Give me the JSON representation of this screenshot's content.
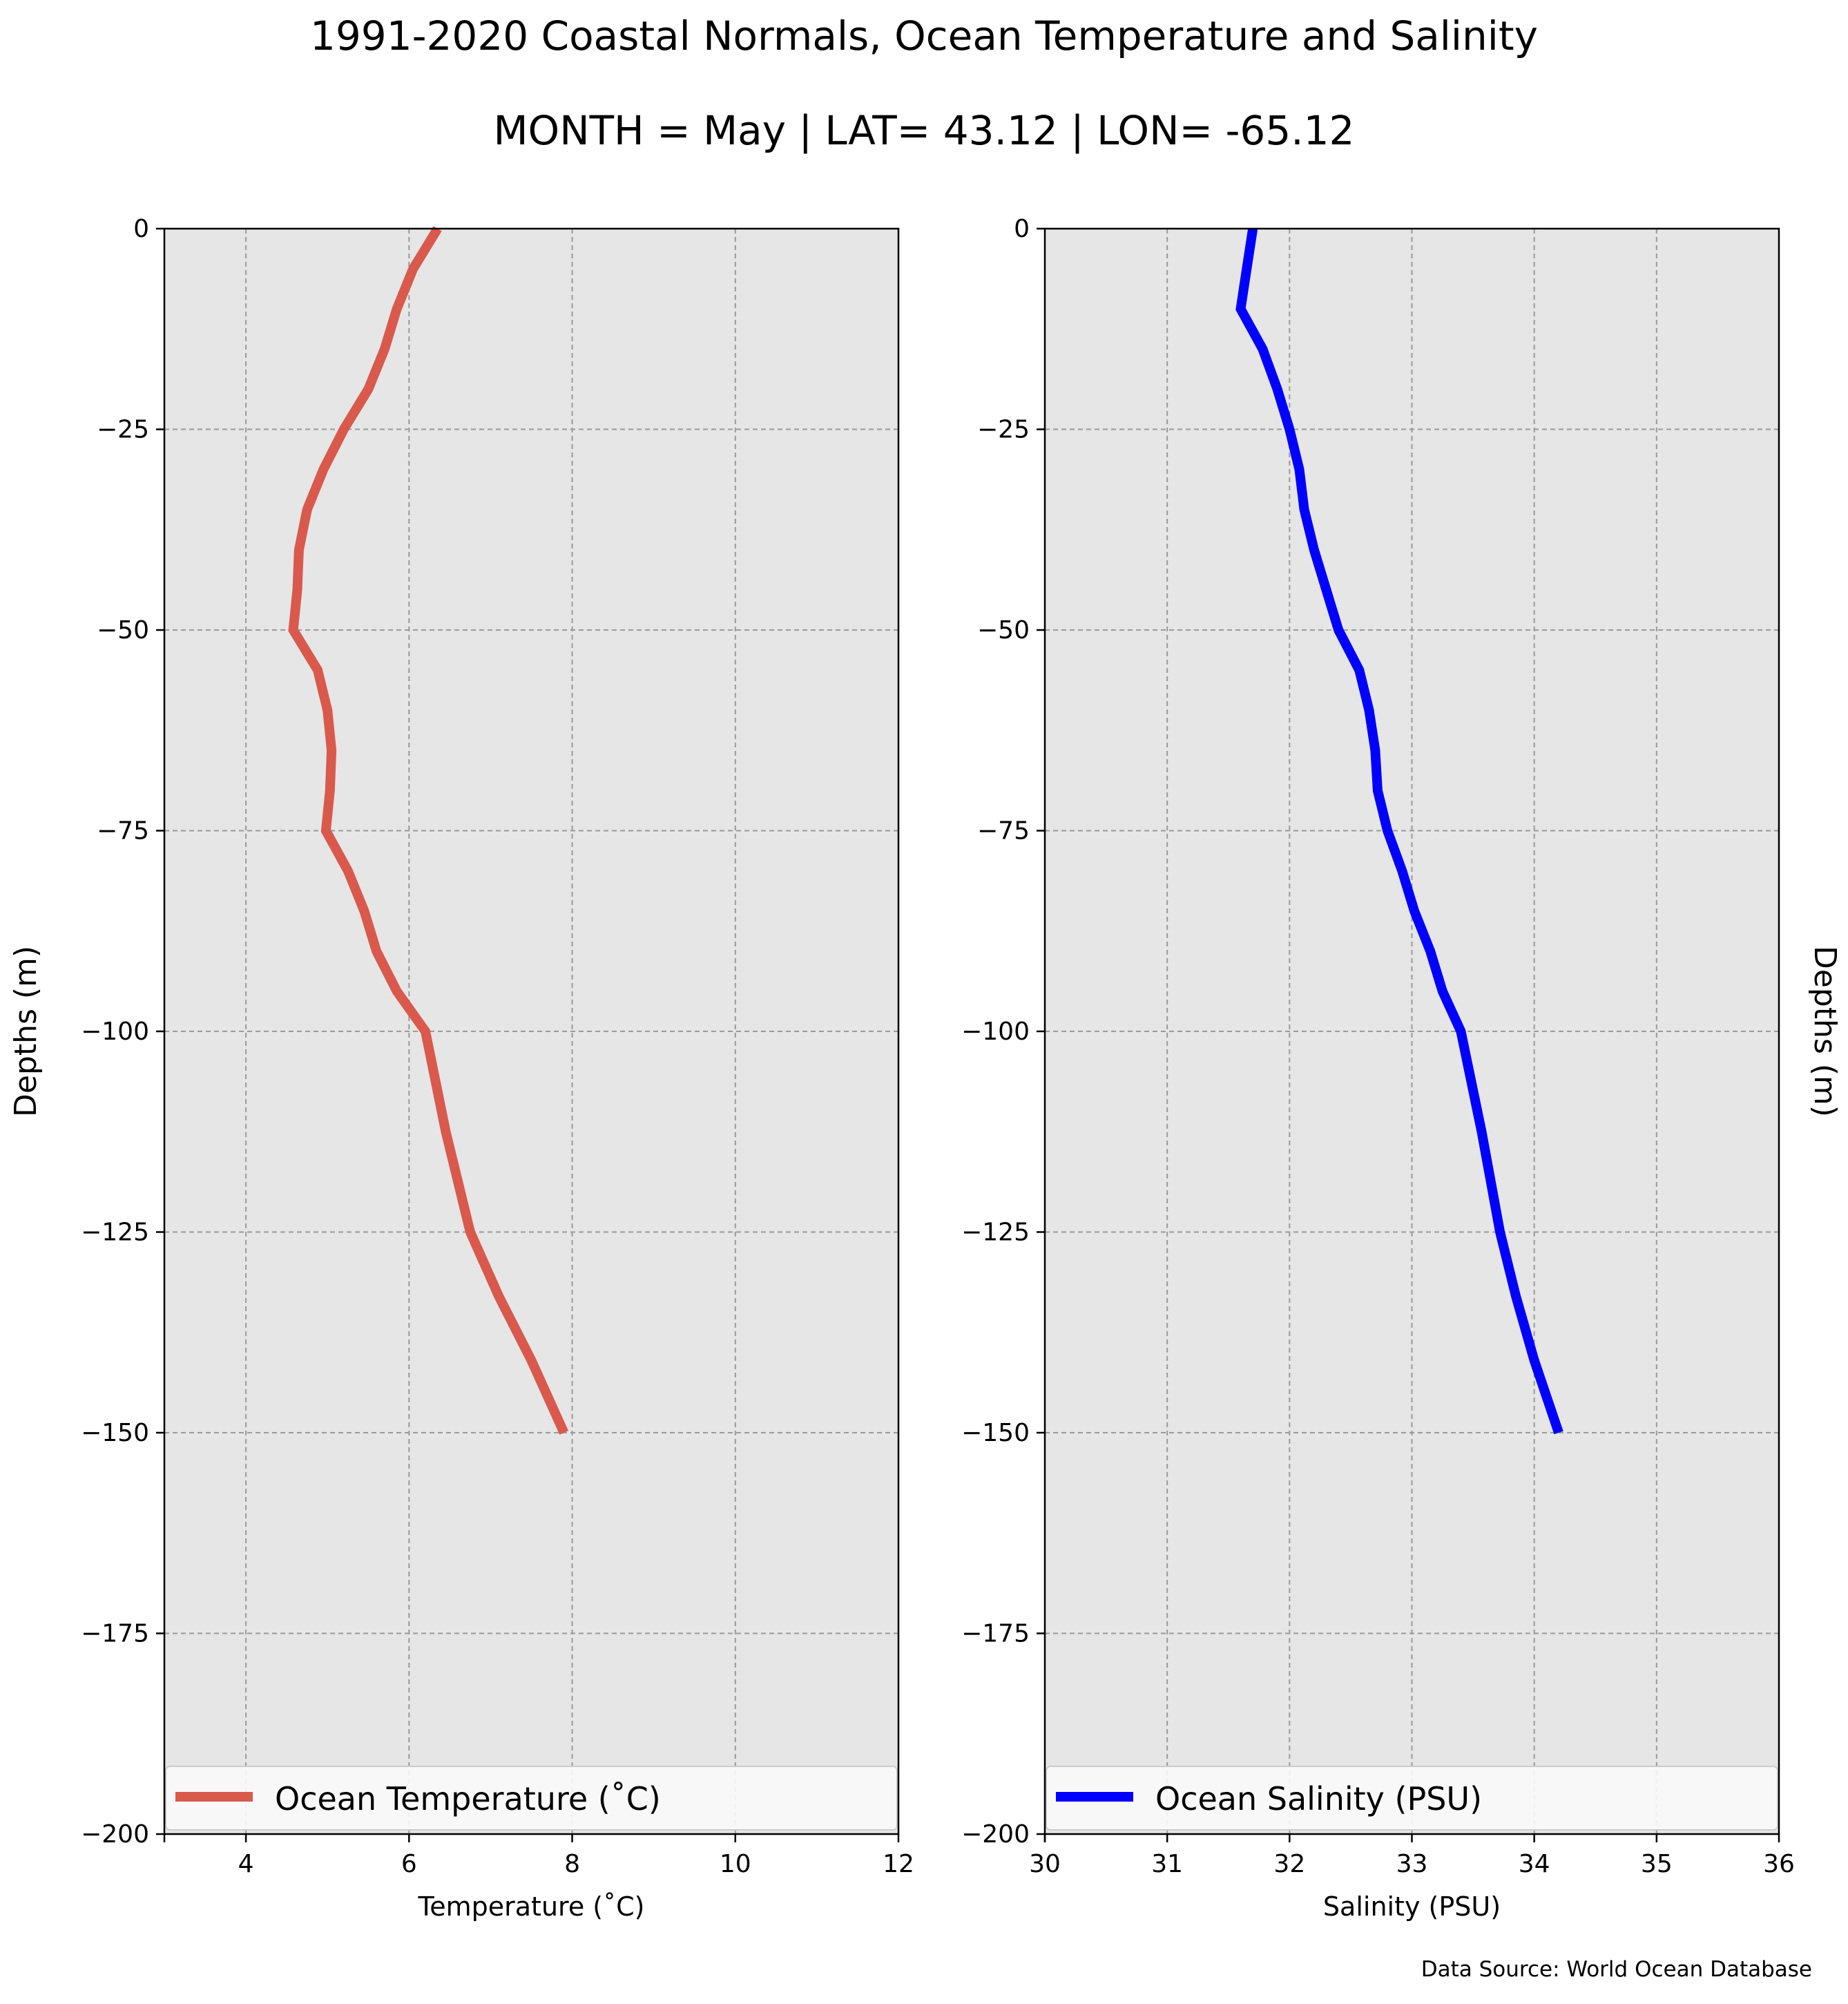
{
  "title": "1991-2020 Coastal Normals, Ocean Temperature and Salinity",
  "subtitle": "MONTH = May | LAT= 43.12 | LON= -65.12",
  "source": "Data Source: World Ocean Database",
  "chart_data": [
    {
      "type": "line",
      "xlabel": "Temperature (˚C)",
      "ylabel": "Depths (m)",
      "xlim": [
        3,
        12
      ],
      "ylim": [
        -200,
        0
      ],
      "xticks": [
        4,
        6,
        8,
        10,
        12
      ],
      "yticks": [
        0,
        -25,
        -50,
        -75,
        -100,
        -125,
        -150,
        -175,
        -200
      ],
      "grid": true,
      "legend_position": "bottom",
      "colors": {
        "background": "#e6e6e6",
        "grid": "#9a9a9a",
        "line": "#d9594c"
      },
      "series": [
        {
          "name": "Ocean Temperature (˚C)",
          "color": "#d9594c",
          "x": [
            6.35,
            6.05,
            5.85,
            5.7,
            5.5,
            5.2,
            4.95,
            4.75,
            4.65,
            4.63,
            4.58,
            4.88,
            5.0,
            5.05,
            5.03,
            4.98,
            5.25,
            5.45,
            5.6,
            5.85,
            6.2,
            6.45,
            6.75,
            7.1,
            7.5,
            7.9
          ],
          "y": [
            0,
            -5,
            -10,
            -15,
            -20,
            -25,
            -30,
            -35,
            -40,
            -45,
            -50,
            -55,
            -60,
            -65,
            -70,
            -75,
            -80,
            -85,
            -90,
            -95,
            -100,
            -112.5,
            -125,
            -133,
            -141,
            -150
          ]
        }
      ]
    },
    {
      "type": "line",
      "xlabel": "Salinity (PSU)",
      "ylabel": "Depths (m)",
      "xlim": [
        30,
        36
      ],
      "ylim": [
        -200,
        0
      ],
      "xticks": [
        30,
        31,
        32,
        33,
        34,
        35,
        36
      ],
      "yticks": [
        0,
        -25,
        -50,
        -75,
        -100,
        -125,
        -150,
        -175,
        -200
      ],
      "grid": true,
      "legend_position": "bottom",
      "colors": {
        "background": "#e6e6e6",
        "grid": "#9a9a9a",
        "line": "#0000ff"
      },
      "series": [
        {
          "name": "Ocean Salinity (PSU)",
          "color": "#0000ff",
          "x": [
            31.7,
            31.65,
            31.6,
            31.78,
            31.9,
            32.0,
            32.08,
            32.12,
            32.2,
            32.3,
            32.4,
            32.57,
            32.65,
            32.7,
            32.72,
            32.8,
            32.92,
            33.02,
            33.15,
            33.25,
            33.4,
            33.57,
            33.72,
            33.85,
            34.0,
            34.2
          ],
          "y": [
            0,
            -5,
            -10,
            -15,
            -20,
            -25,
            -30,
            -35,
            -40,
            -45,
            -50,
            -55,
            -60,
            -65,
            -70,
            -75,
            -80,
            -85,
            -90,
            -95,
            -100,
            -112.5,
            -125,
            -133,
            -141,
            -150
          ]
        }
      ]
    }
  ]
}
